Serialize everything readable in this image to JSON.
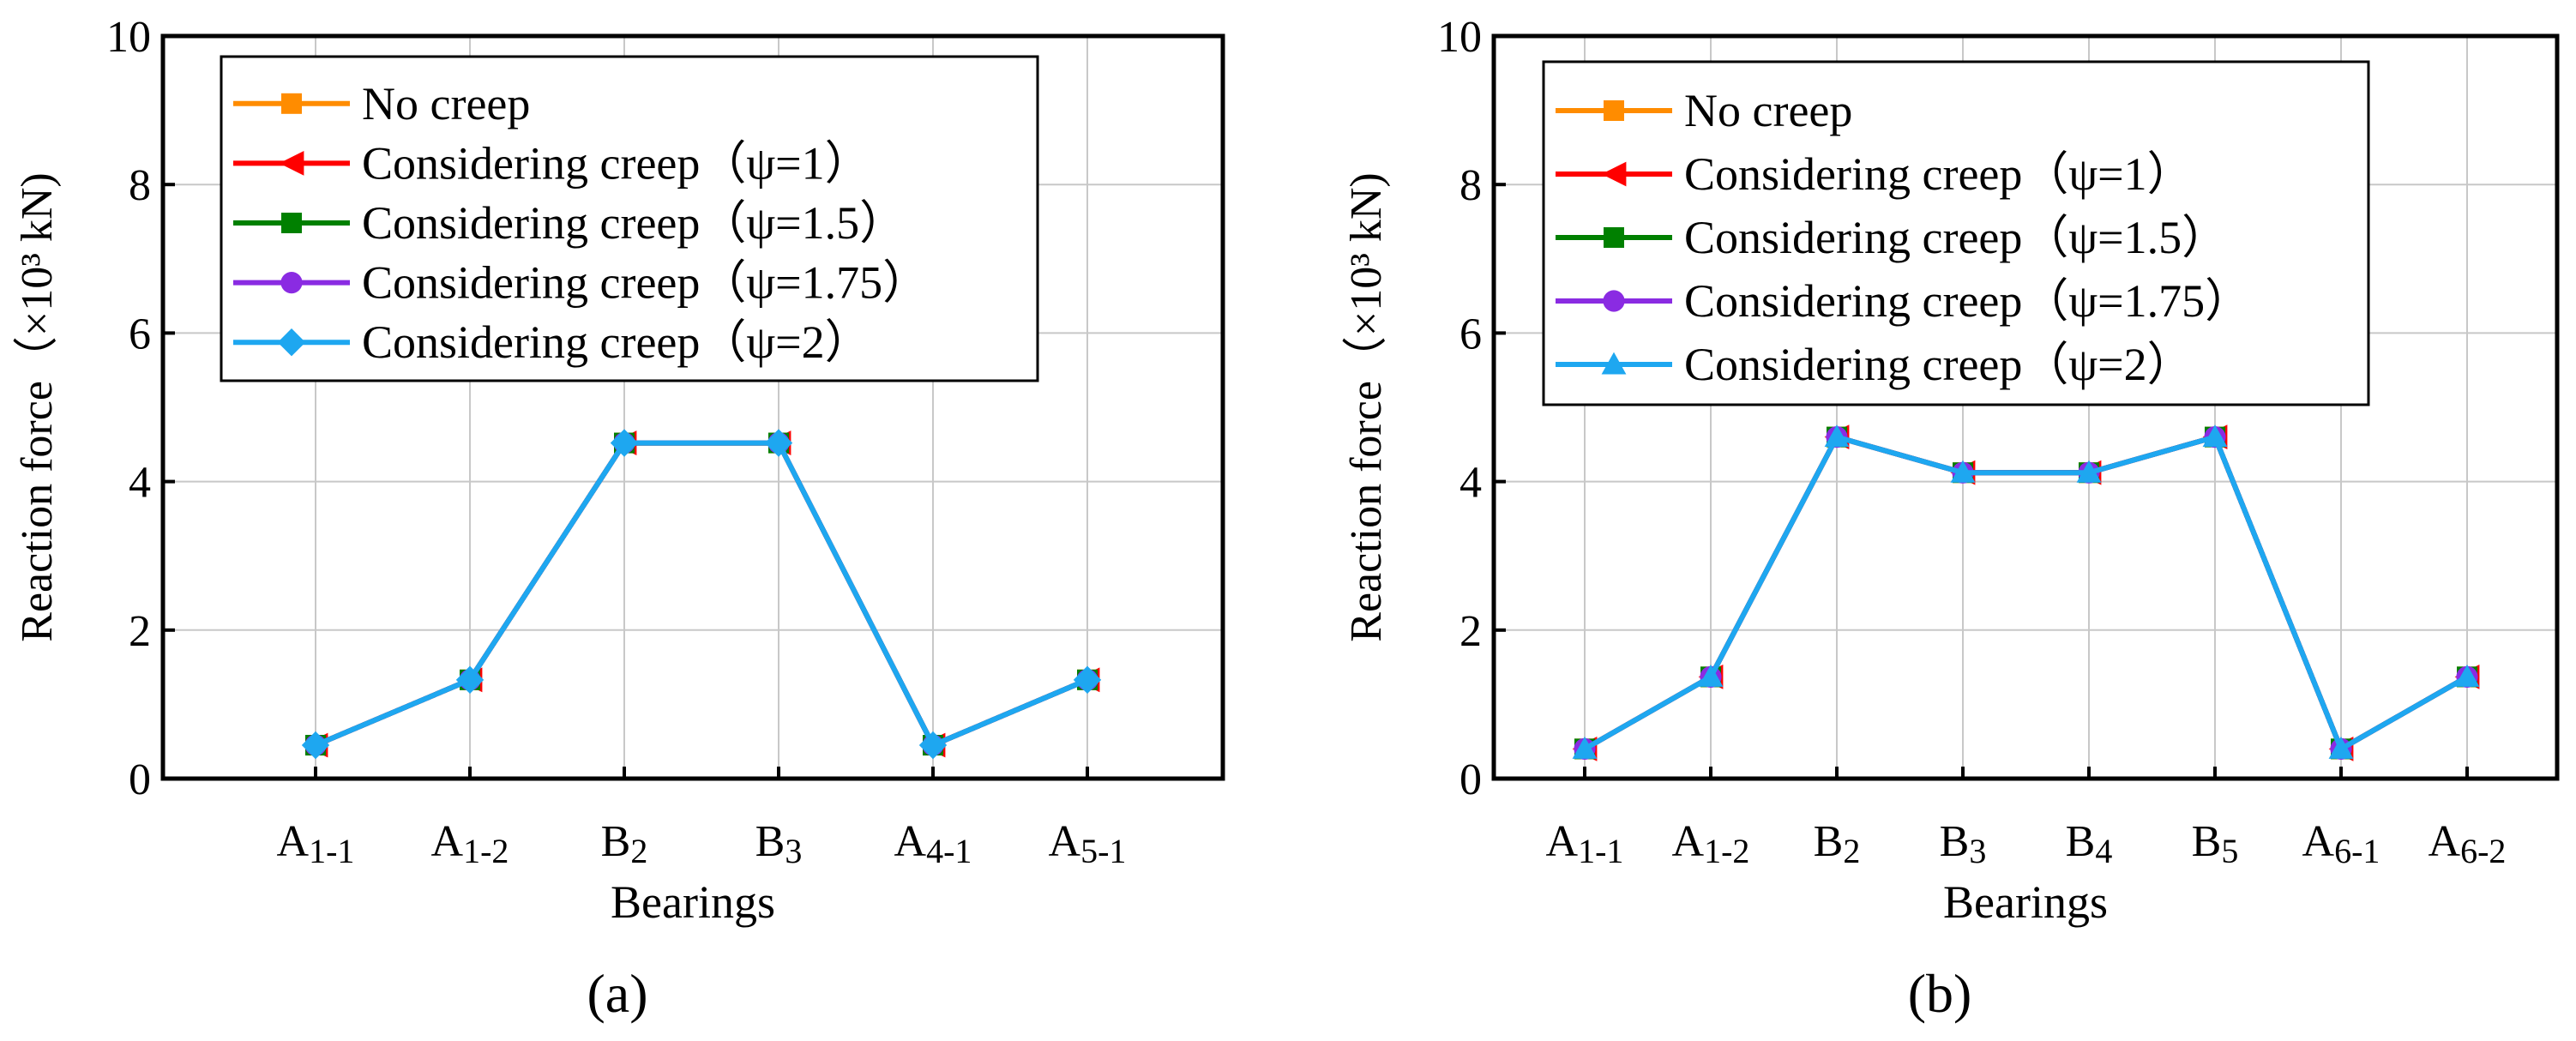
{
  "colors": {
    "no_creep": "#ff8c00",
    "psi_1": "#ff0000",
    "psi_1_5": "#008000",
    "psi_1_75": "#8a2be2",
    "psi_2": "#1ea7f0",
    "grid": "#c8c8c8",
    "axis": "#000000"
  },
  "chart_data": [
    {
      "type": "line",
      "panel_label": "(a)",
      "xlabel": "Bearings",
      "ylabel": "Reaction force（×10³ kN)",
      "ylim": [
        0,
        10
      ],
      "yticks": [
        0,
        2,
        4,
        6,
        8,
        10
      ],
      "grid": true,
      "legend_position": "top-left",
      "categories": [
        {
          "base": "A",
          "sub": "1-1"
        },
        {
          "base": "A",
          "sub": "1-2"
        },
        {
          "base": "B",
          "sub": "2"
        },
        {
          "base": "B",
          "sub": "3"
        },
        {
          "base": "A",
          "sub": "4-1"
        },
        {
          "base": "A",
          "sub": "5-1"
        }
      ],
      "series": [
        {
          "name": "No creep",
          "color_key": "no_creep",
          "marker": "square",
          "values": [
            0.45,
            1.33,
            4.52,
            4.52,
            0.45,
            1.33
          ]
        },
        {
          "name": "Considering creep（ψ=1）",
          "color_key": "psi_1",
          "marker": "triangle-left",
          "values": [
            0.45,
            1.33,
            4.52,
            4.52,
            0.45,
            1.33
          ]
        },
        {
          "name": "Considering creep（ψ=1.5）",
          "color_key": "psi_1_5",
          "marker": "square",
          "values": [
            0.45,
            1.33,
            4.52,
            4.52,
            0.45,
            1.33
          ]
        },
        {
          "name": "Considering creep（ψ=1.75）",
          "color_key": "psi_1_75",
          "marker": "circle",
          "values": [
            0.45,
            1.33,
            4.52,
            4.52,
            0.45,
            1.33
          ]
        },
        {
          "name": "Considering creep（ψ=2）",
          "color_key": "psi_2",
          "marker": "diamond",
          "values": [
            0.45,
            1.33,
            4.52,
            4.52,
            0.45,
            1.33
          ]
        }
      ]
    },
    {
      "type": "line",
      "panel_label": "(b)",
      "xlabel": "Bearings",
      "ylabel": "Reaction force（×10³ kN)",
      "ylim": [
        0,
        10
      ],
      "yticks": [
        0,
        2,
        4,
        6,
        8,
        10
      ],
      "grid": true,
      "legend_position": "top-left",
      "categories": [
        {
          "base": "A",
          "sub": "1-1"
        },
        {
          "base": "A",
          "sub": "1-2"
        },
        {
          "base": "B",
          "sub": "2"
        },
        {
          "base": "B",
          "sub": "3"
        },
        {
          "base": "B",
          "sub": "4"
        },
        {
          "base": "B",
          "sub": "5"
        },
        {
          "base": "A",
          "sub": "6-1"
        },
        {
          "base": "A",
          "sub": "6-2"
        }
      ],
      "series": [
        {
          "name": "No creep",
          "color_key": "no_creep",
          "marker": "square",
          "values": [
            0.4,
            1.37,
            4.6,
            4.12,
            4.12,
            4.6,
            0.4,
            1.37
          ]
        },
        {
          "name": "Considering creep（ψ=1）",
          "color_key": "psi_1",
          "marker": "triangle-left",
          "values": [
            0.4,
            1.37,
            4.6,
            4.12,
            4.12,
            4.6,
            0.4,
            1.37
          ]
        },
        {
          "name": "Considering creep（ψ=1.5）",
          "color_key": "psi_1_5",
          "marker": "square",
          "values": [
            0.4,
            1.37,
            4.6,
            4.12,
            4.12,
            4.6,
            0.4,
            1.37
          ]
        },
        {
          "name": "Considering creep（ψ=1.75）",
          "color_key": "psi_1_75",
          "marker": "circle",
          "values": [
            0.4,
            1.37,
            4.6,
            4.12,
            4.12,
            4.6,
            0.4,
            1.37
          ]
        },
        {
          "name": "Considering creep（ψ=2）",
          "color_key": "psi_2",
          "marker": "triangle-up",
          "values": [
            0.4,
            1.37,
            4.6,
            4.12,
            4.12,
            4.6,
            0.4,
            1.37
          ]
        }
      ]
    }
  ]
}
